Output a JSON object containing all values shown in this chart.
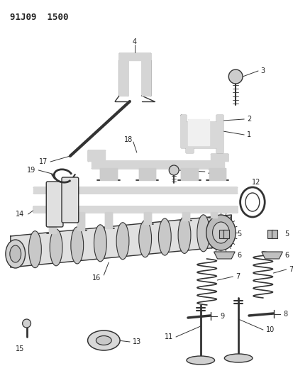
{
  "title": "91J09  1500",
  "bg_color": "#ffffff",
  "lc": "#333333",
  "tc": "#222222",
  "fig_width": 4.14,
  "fig_height": 5.33,
  "dpi": 100
}
